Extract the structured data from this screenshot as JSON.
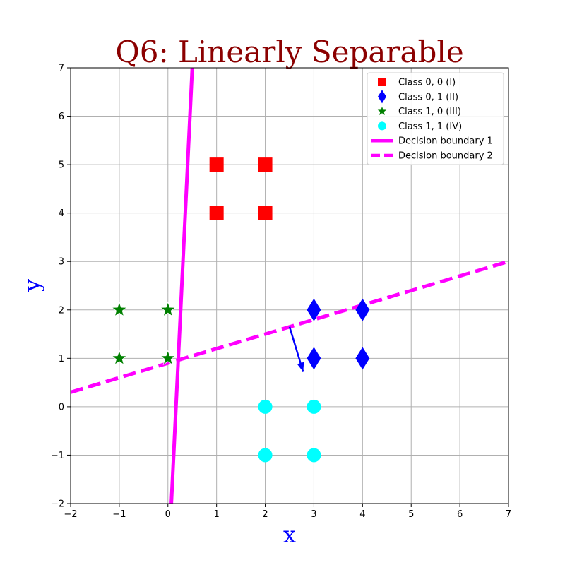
{
  "chart_data": {
    "type": "scatter",
    "title": "Q6: Linearly Separable",
    "xlabel": "x",
    "ylabel": "y",
    "xlim": [
      -2,
      7
    ],
    "ylim": [
      -2,
      7
    ],
    "xticks": [
      -2,
      -1,
      0,
      1,
      2,
      3,
      4,
      5,
      6,
      7
    ],
    "yticks": [
      -2,
      -1,
      0,
      1,
      2,
      3,
      4,
      5,
      6,
      7
    ],
    "grid": true,
    "legend_position": "top-right",
    "colors": {
      "title": "#8b0000",
      "axis_label": "#0000ff",
      "class_I": "#ff0000",
      "class_II": "#0000ff",
      "class_III": "#008000",
      "class_IV": "#00ffff",
      "boundary": "#ff00ff",
      "arrow": "#0000ff",
      "grid": "#b0b0b0"
    },
    "series": [
      {
        "name": "Class 0, 0 (I)",
        "marker": "square",
        "color": "#ff0000",
        "points": [
          [
            1,
            4
          ],
          [
            1,
            5
          ],
          [
            2,
            4
          ],
          [
            2,
            5
          ]
        ]
      },
      {
        "name": "Class 0, 1 (II)",
        "marker": "diamond",
        "color": "#0000ff",
        "points": [
          [
            3,
            1
          ],
          [
            3,
            2
          ],
          [
            4,
            1
          ],
          [
            4,
            2
          ]
        ]
      },
      {
        "name": "Class 1, 0 (III)",
        "marker": "star",
        "color": "#008000",
        "points": [
          [
            -1,
            1
          ],
          [
            -1,
            2
          ],
          [
            0,
            1
          ],
          [
            0,
            2
          ]
        ]
      },
      {
        "name": "Class 1, 1 (IV)",
        "marker": "circle",
        "color": "#00ffff",
        "points": [
          [
            2,
            0
          ],
          [
            2,
            -1
          ],
          [
            3,
            0
          ],
          [
            3,
            -1
          ]
        ]
      }
    ],
    "lines": [
      {
        "name": "Decision boundary 1",
        "style": "solid",
        "color": "#ff00ff",
        "points": [
          [
            0.07,
            -2
          ],
          [
            0.5,
            7
          ]
        ]
      },
      {
        "name": "Decision boundary 2",
        "style": "dashed",
        "color": "#ff00ff",
        "points": [
          [
            -2,
            0.3
          ],
          [
            7,
            3
          ]
        ]
      }
    ],
    "arrow": {
      "from": [
        2.5,
        1.65
      ],
      "to": [
        2.78,
        0.72
      ],
      "color": "#0000ff"
    }
  }
}
